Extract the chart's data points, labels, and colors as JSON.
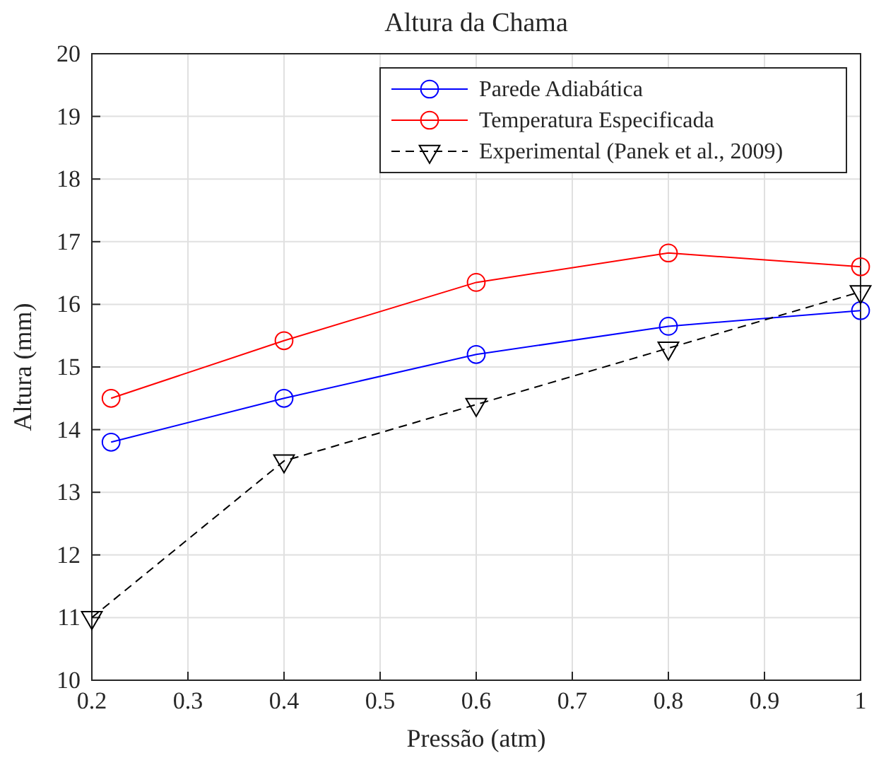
{
  "chart_data": {
    "type": "line",
    "title": "Altura da Chama",
    "xlabel": "Pressão (atm)",
    "ylabel": "Altura (mm)",
    "xlim": [
      0.2,
      1
    ],
    "xticks": [
      0.2,
      0.3,
      0.4,
      0.5,
      0.6,
      0.7,
      0.8,
      0.9,
      1
    ],
    "ylim": [
      10,
      20
    ],
    "yticks": [
      10,
      11,
      12,
      13,
      14,
      15,
      16,
      17,
      18,
      19,
      20
    ],
    "grid": true,
    "legend": "top right",
    "series": [
      {
        "name": "Parede Adiabática",
        "color": "#0000ff",
        "marker": "circle",
        "line_style": "solid",
        "x": [
          0.22,
          0.4,
          0.6,
          0.8,
          1
        ],
        "values": [
          13.8,
          14.5,
          15.2,
          15.65,
          15.9
        ]
      },
      {
        "name": "Temperatura Especificada",
        "color": "#ff0000",
        "marker": "circle",
        "line_style": "solid",
        "x": [
          0.22,
          0.4,
          0.6,
          0.8,
          1
        ],
        "values": [
          14.5,
          15.42,
          16.35,
          16.82,
          16.6
        ]
      },
      {
        "name": "Experimental (Panek et al., 2009)",
        "color": "#000000",
        "marker": "triangle",
        "line_style": "dashed",
        "x": [
          0.2,
          0.4,
          0.6,
          0.8,
          1
        ],
        "values": [
          11.0,
          13.5,
          14.4,
          15.3,
          16.2
        ]
      }
    ]
  }
}
